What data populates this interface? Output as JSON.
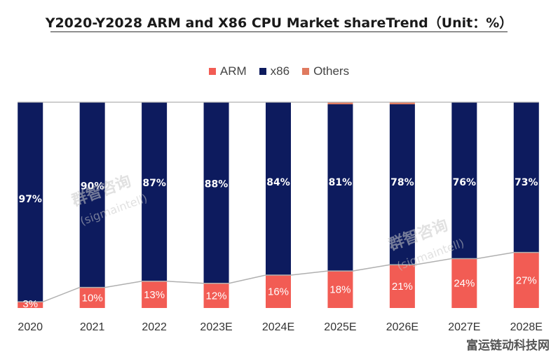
{
  "colors": {
    "arm": "#f25c54",
    "x86": "#0d1b5e",
    "others": "#e07a5f",
    "line": "#b0b0b0"
  },
  "legend": [
    {
      "name": "ARM",
      "color": "#f25c54"
    },
    {
      "name": "x86",
      "color": "#0d1b5e"
    },
    {
      "name": "Others",
      "color": "#e07a5f"
    }
  ],
  "watermark": {
    "corner": "富运链动科技网",
    "logo": "群智咨询",
    "handle": "(sigmaintell)"
  },
  "chart_data": {
    "type": "bar",
    "stacked": true,
    "title": "Y2020-Y2028 ARM and X86 CPU Market shareTrend（Unit：%）",
    "categories": [
      "2020",
      "2021",
      "2022",
      "2023E",
      "2024E",
      "2025E",
      "2026E",
      "2027E",
      "2028E"
    ],
    "series": [
      {
        "name": "ARM",
        "values": [
          3,
          10,
          13,
          12,
          16,
          18,
          21,
          24,
          27
        ],
        "labels": [
          "3%",
          "10%",
          "13%",
          "12%",
          "16%",
          "18%",
          "21%",
          "24%",
          "27%"
        ]
      },
      {
        "name": "x86",
        "values": [
          97,
          90,
          87,
          88,
          84,
          81,
          78,
          76,
          73
        ],
        "labels": [
          "97%",
          "90%",
          "87%",
          "88%",
          "84%",
          "81%",
          "78%",
          "76%",
          "73%"
        ]
      },
      {
        "name": "Others",
        "values": [
          0,
          0,
          0,
          0,
          0,
          1,
          1,
          0,
          0
        ]
      }
    ],
    "ylim": [
      0,
      100
    ],
    "xlabel": "",
    "ylabel": ""
  }
}
